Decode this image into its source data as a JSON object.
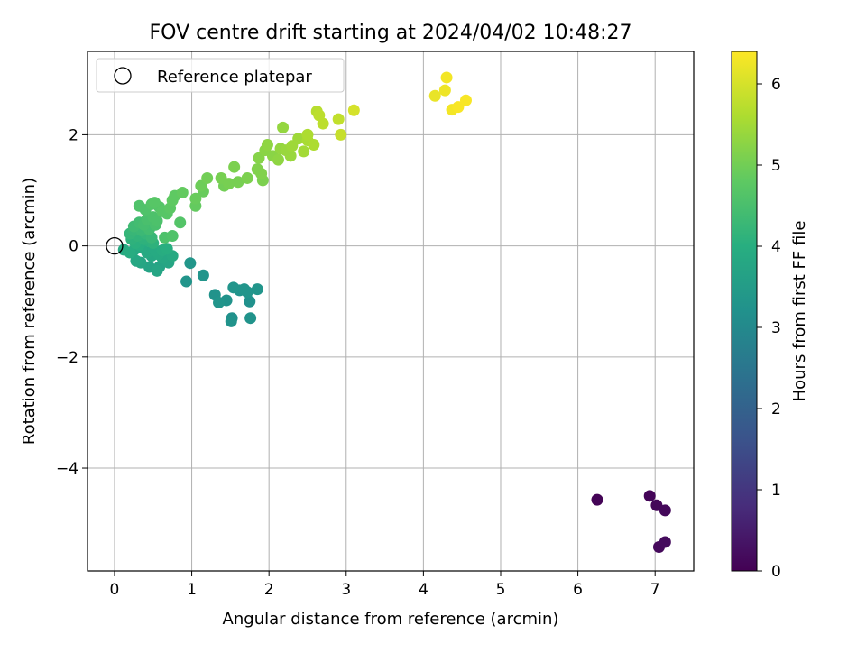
{
  "chart_data": {
    "type": "scatter",
    "title": "FOV centre drift starting at 2024/04/02 10:48:27",
    "xlabel": "Angular distance from reference (arcmin)",
    "ylabel": "Rotation from reference (arcmin)",
    "xlim": [
      -0.35,
      7.5
    ],
    "ylim": [
      -5.85,
      3.5
    ],
    "xticks": [
      0,
      1,
      2,
      3,
      4,
      5,
      6,
      7
    ],
    "yticks": [
      -4,
      -2,
      0,
      2
    ],
    "grid": true,
    "legend": {
      "placement": "top-left",
      "entries": [
        "Reference platepar"
      ]
    },
    "colorbar": {
      "label": "Hours from first FF file",
      "min": 0,
      "max": 6.4,
      "ticks": [
        0,
        1,
        2,
        3,
        4,
        5,
        6
      ],
      "colormap": "viridis"
    },
    "reference_point": {
      "x": 0,
      "y": 0
    },
    "points": [
      [
        6.25,
        -4.57,
        0.05
      ],
      [
        6.93,
        -4.5,
        0.08
      ],
      [
        7.02,
        -4.67,
        0.1
      ],
      [
        7.13,
        -4.76,
        0.12
      ],
      [
        7.05,
        -5.42,
        0.15
      ],
      [
        7.13,
        -5.33,
        0.18
      ],
      [
        0.93,
        -0.64,
        3.3
      ],
      [
        0.98,
        -0.31,
        3.35
      ],
      [
        1.15,
        -0.53,
        3.3
      ],
      [
        1.3,
        -0.88,
        3.25
      ],
      [
        1.35,
        -1.02,
        3.3
      ],
      [
        1.45,
        -0.98,
        3.25
      ],
      [
        1.52,
        -1.3,
        3.2
      ],
      [
        1.51,
        -1.36,
        3.25
      ],
      [
        1.54,
        -0.75,
        3.3
      ],
      [
        1.62,
        -0.8,
        3.25
      ],
      [
        1.68,
        -0.78,
        3.3
      ],
      [
        1.72,
        -0.83,
        3.3
      ],
      [
        1.75,
        -1.0,
        3.2
      ],
      [
        1.76,
        -1.3,
        3.25
      ],
      [
        1.85,
        -0.78,
        3.3
      ],
      [
        0.28,
        -0.27,
        3.8
      ],
      [
        0.34,
        -0.3,
        3.75
      ],
      [
        0.45,
        -0.38,
        3.7
      ],
      [
        0.55,
        -0.45,
        3.75
      ],
      [
        0.58,
        -0.38,
        3.7
      ],
      [
        0.62,
        -0.22,
        3.8
      ],
      [
        0.7,
        -0.3,
        3.75
      ],
      [
        0.75,
        -0.18,
        3.85
      ],
      [
        0.12,
        -0.07,
        3.9
      ],
      [
        0.2,
        -0.12,
        3.95
      ],
      [
        0.25,
        -0.08,
        3.85
      ],
      [
        0.35,
        -0.03,
        3.9
      ],
      [
        0.42,
        -0.12,
        3.85
      ],
      [
        0.48,
        -0.18,
        3.8
      ],
      [
        0.52,
        -0.08,
        3.9
      ],
      [
        0.57,
        -0.15,
        3.85
      ],
      [
        0.62,
        -0.08,
        3.95
      ],
      [
        0.68,
        -0.05,
        4.0
      ],
      [
        0.27,
        0.05,
        4.05
      ],
      [
        0.32,
        0.02,
        4.0
      ],
      [
        0.22,
        0.12,
        4.1
      ],
      [
        0.3,
        0.18,
        4.15
      ],
      [
        0.38,
        0.12,
        4.1
      ],
      [
        0.45,
        0.08,
        4.05
      ],
      [
        0.5,
        0.05,
        4.1
      ],
      [
        0.2,
        0.22,
        4.2
      ],
      [
        0.25,
        0.28,
        4.25
      ],
      [
        0.35,
        0.28,
        4.3
      ],
      [
        0.4,
        0.22,
        4.2
      ],
      [
        0.48,
        0.15,
        4.25
      ],
      [
        0.25,
        0.35,
        4.35
      ],
      [
        0.32,
        0.42,
        4.4
      ],
      [
        0.38,
        0.38,
        4.45
      ],
      [
        0.45,
        0.3,
        4.4
      ],
      [
        0.53,
        0.38,
        4.5
      ],
      [
        0.42,
        0.48,
        4.5
      ],
      [
        0.5,
        0.52,
        4.55
      ],
      [
        0.55,
        0.45,
        4.55
      ],
      [
        0.32,
        0.72,
        4.6
      ],
      [
        0.4,
        0.65,
        4.6
      ],
      [
        0.48,
        0.75,
        4.65
      ],
      [
        0.52,
        0.78,
        4.7
      ],
      [
        0.58,
        0.7,
        4.65
      ],
      [
        0.62,
        0.62,
        4.7
      ],
      [
        0.68,
        0.58,
        4.7
      ],
      [
        0.72,
        0.68,
        4.75
      ],
      [
        0.75,
        0.82,
        4.8
      ],
      [
        0.78,
        0.9,
        4.8
      ],
      [
        0.65,
        0.15,
        4.55
      ],
      [
        0.75,
        0.18,
        4.6
      ],
      [
        0.85,
        0.42,
        4.65
      ],
      [
        0.88,
        0.96,
        4.85
      ],
      [
        1.05,
        0.72,
        4.85
      ],
      [
        1.05,
        0.85,
        4.9
      ],
      [
        1.12,
        1.08,
        4.95
      ],
      [
        1.15,
        0.98,
        4.9
      ],
      [
        1.2,
        1.22,
        5.0
      ],
      [
        1.38,
        1.22,
        5.05
      ],
      [
        1.42,
        1.08,
        5.0
      ],
      [
        1.48,
        1.12,
        5.05
      ],
      [
        1.55,
        1.42,
        5.1
      ],
      [
        1.6,
        1.15,
        5.05
      ],
      [
        1.72,
        1.22,
        5.1
      ],
      [
        1.85,
        1.38,
        5.15
      ],
      [
        1.9,
        1.3,
        5.15
      ],
      [
        1.92,
        1.18,
        5.1
      ],
      [
        1.87,
        1.58,
        5.2
      ],
      [
        1.95,
        1.72,
        5.25
      ],
      [
        1.98,
        1.82,
        5.3
      ],
      [
        2.05,
        1.62,
        5.25
      ],
      [
        2.12,
        1.55,
        5.3
      ],
      [
        2.15,
        1.75,
        5.35
      ],
      [
        2.22,
        1.72,
        5.4
      ],
      [
        2.18,
        2.13,
        5.35
      ],
      [
        2.28,
        1.62,
        5.4
      ],
      [
        2.3,
        1.8,
        5.45
      ],
      [
        2.38,
        1.93,
        5.45
      ],
      [
        2.45,
        1.7,
        5.5
      ],
      [
        2.5,
        1.9,
        5.55
      ],
      [
        2.5,
        2.0,
        5.6
      ],
      [
        2.58,
        1.82,
        5.6
      ],
      [
        2.62,
        2.42,
        5.7
      ],
      [
        2.65,
        2.35,
        5.75
      ],
      [
        2.7,
        2.2,
        5.75
      ],
      [
        2.9,
        2.28,
        5.8
      ],
      [
        2.93,
        2.0,
        5.85
      ],
      [
        3.1,
        2.44,
        6.0
      ],
      [
        4.15,
        2.7,
        6.2
      ],
      [
        4.28,
        2.8,
        6.25
      ],
      [
        4.3,
        3.03,
        6.3
      ],
      [
        4.37,
        2.45,
        6.3
      ],
      [
        4.45,
        2.5,
        6.35
      ],
      [
        4.55,
        2.62,
        6.35
      ]
    ]
  }
}
